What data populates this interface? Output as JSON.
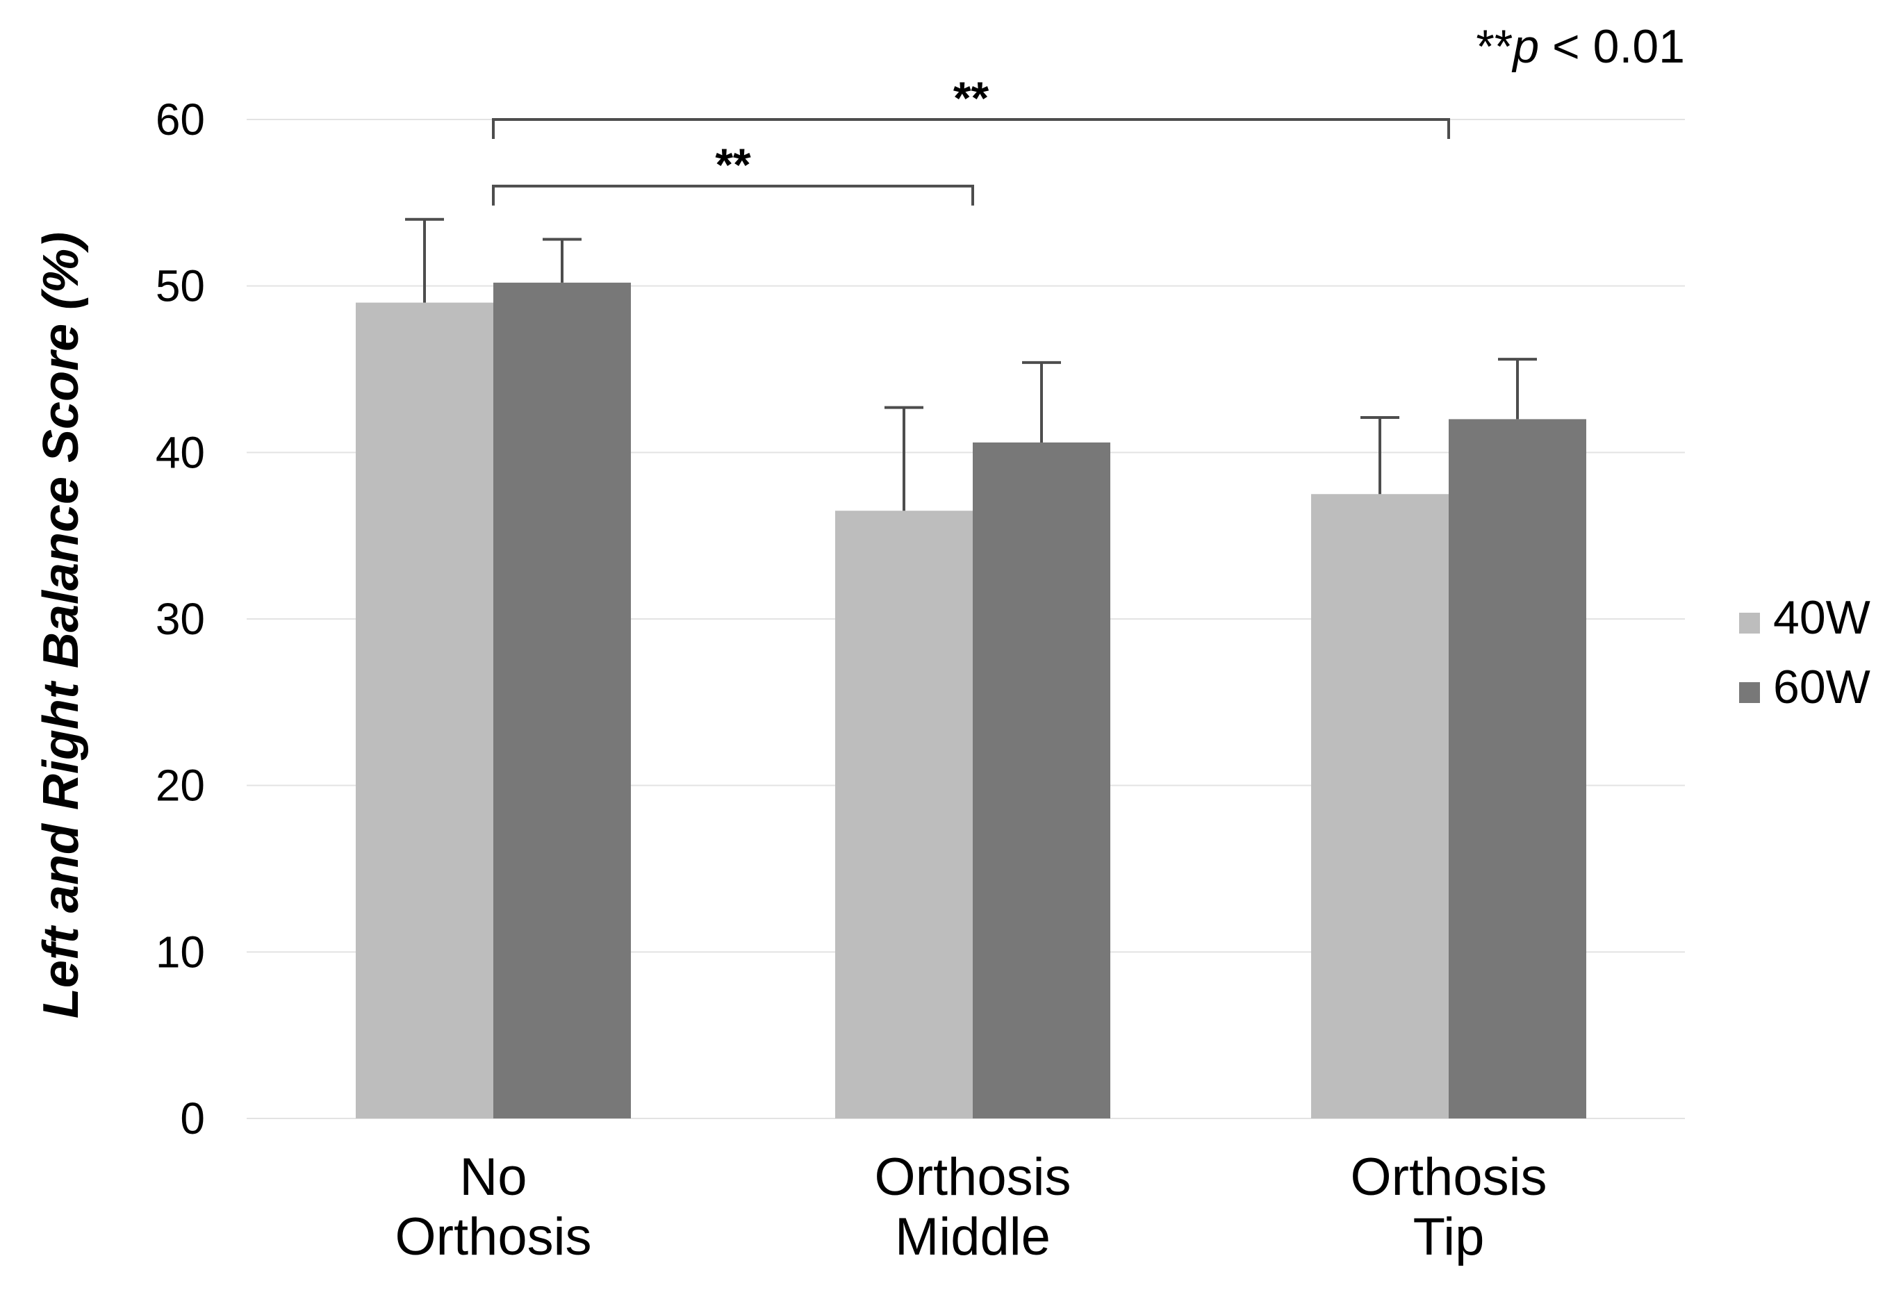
{
  "chart_data": {
    "type": "bar",
    "categories": [
      [
        "No",
        "Orthosis"
      ],
      [
        "Orthosis",
        "Middle"
      ],
      [
        "Orthosis",
        "Tip"
      ]
    ],
    "series": [
      {
        "name": "40W",
        "values": [
          49,
          36.5,
          37.5
        ],
        "errors": [
          5,
          6.2,
          4.6
        ],
        "color": "#bdbdbd"
      },
      {
        "name": "60W",
        "values": [
          50.2,
          40.6,
          42
        ],
        "errors": [
          2.6,
          4.8,
          3.6
        ],
        "color": "#787878"
      }
    ],
    "ylabel": "Left and Right Balance Score (%)",
    "xlabel": "",
    "ylim": [
      0,
      60
    ],
    "yticks": [
      0,
      10,
      20,
      30,
      40,
      50,
      60
    ],
    "grid": true,
    "legend_position": "right",
    "significance": [
      {
        "from": 0,
        "to": 1,
        "label": "**",
        "y": 56
      },
      {
        "from": 0,
        "to": 2,
        "label": "**",
        "y": 60
      }
    ],
    "note": {
      "prefix": "**",
      "p": "p",
      "rest": " < 0.01"
    }
  }
}
